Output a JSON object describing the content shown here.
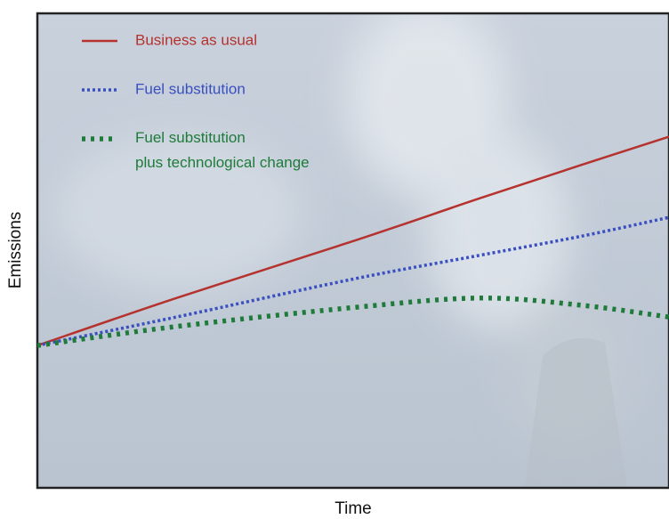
{
  "chart_data": {
    "type": "line",
    "x_label": "Time",
    "y_label": "Emissions",
    "x": [
      0,
      22,
      50,
      70,
      86,
      100
    ],
    "xlim": [
      0,
      100
    ],
    "ylim": [
      0,
      100
    ],
    "legend": "upper left",
    "series": [
      {
        "name": "Business as usual",
        "color": "#b5322e",
        "style": "solid",
        "values": [
          30,
          40,
          52,
          61,
          68,
          74
        ]
      },
      {
        "name": "Fuel substitution",
        "color": "#3a4fc0",
        "style": "dotted",
        "values": [
          30,
          36,
          44,
          49,
          53,
          57
        ]
      },
      {
        "name": "Fuel substitution\nplus technological change",
        "color": "#1e7b3a",
        "style": "heavy-dotted",
        "values": [
          30,
          34,
          38,
          40,
          38.5,
          36
        ]
      }
    ]
  }
}
